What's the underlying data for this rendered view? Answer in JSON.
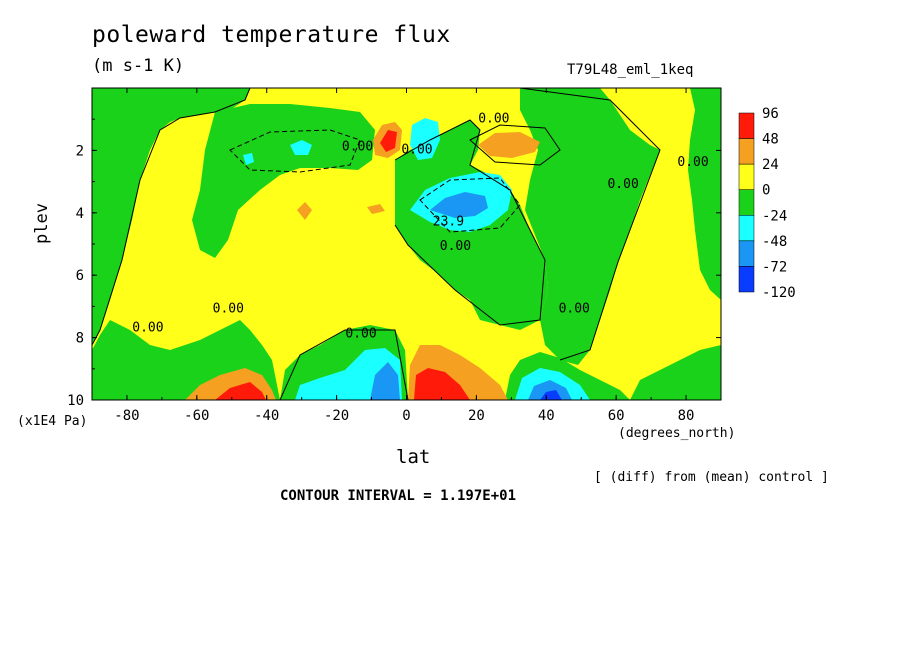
{
  "chart_data": {
    "type": "heatmap",
    "title": "poleward temperature flux",
    "subtitle": "(m s-1 K)",
    "run_label": "T79L48_eml_1keq",
    "xlabel": "lat",
    "x_unit": "(degrees_north)",
    "ylabel": "plev",
    "y_unit": "(x1E4 Pa)",
    "difference_label": "[ (diff) from (mean) control ]",
    "contour_interval": "CONTOUR INTERVAL = 1.197E+01",
    "xlim": [
      -90,
      90
    ],
    "ylim": [
      10,
      0
    ],
    "x_ticks": [
      "-80",
      "-60",
      "-40",
      "-20",
      "0",
      "20",
      "40",
      "60",
      "80"
    ],
    "x_tick_values": [
      -80,
      -60,
      -40,
      -20,
      0,
      20,
      40,
      60,
      80
    ],
    "y_ticks": [
      "2",
      "4",
      "6",
      "8",
      "10"
    ],
    "y_tick_values": [
      2,
      4,
      6,
      8,
      10
    ],
    "colorbar": {
      "labels": [
        "96",
        "48",
        "24",
        "0",
        "-24",
        "-48",
        "-72",
        "-120"
      ],
      "colors": [
        "#ff1a0a",
        "#f5a020",
        "#ffff1a",
        "#1ad21a",
        "#1affff",
        "#1a96f5",
        "#0a3cff"
      ]
    },
    "contour_labels": [
      {
        "text": "0.00",
        "lon": -14,
        "lev": 2.0
      },
      {
        "text": "0.00",
        "lon": 25,
        "lev": 1.1
      },
      {
        "text": "0.00",
        "lon": 3,
        "lev": 2.1
      },
      {
        "text": "0.00",
        "lon": 62,
        "lev": 3.2
      },
      {
        "text": "0.00",
        "lon": 82,
        "lev": 2.5
      },
      {
        "text": "23.9",
        "lon": 12,
        "lev": 4.4
      },
      {
        "text": "0.00",
        "lon": 14,
        "lev": 5.2
      },
      {
        "text": "0.00",
        "lon": 48,
        "lev": 7.2
      },
      {
        "text": "0.00",
        "lon": -51,
        "lev": 7.2
      },
      {
        "text": "0.00",
        "lon": -74,
        "lev": 7.8
      },
      {
        "text": "0.00",
        "lon": -13,
        "lev": 8.0
      }
    ]
  }
}
